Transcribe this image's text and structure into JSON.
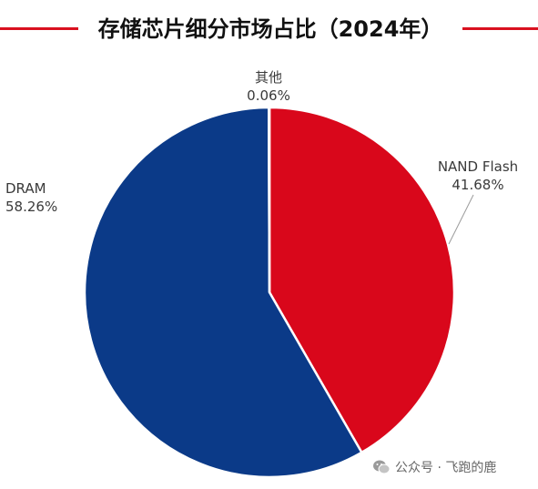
{
  "title": "存储芯片细分市场占比（2024年）",
  "chart_data": {
    "type": "pie",
    "title": "存储芯片细分市场占比（2024年）",
    "slices": [
      {
        "name": "NAND Flash",
        "value": 41.68,
        "label": "41.68%",
        "color": "#d9071b"
      },
      {
        "name": "DRAM",
        "value": 58.26,
        "label": "58.26%",
        "color": "#0b3a88"
      },
      {
        "name": "其他",
        "value": 0.06,
        "label": "0.06%",
        "color": "#9a9a9a"
      }
    ]
  },
  "colors": {
    "accent_line": "#d9101f",
    "label_text": "#3a3a3a"
  },
  "watermark": {
    "text": "公众号 · 飞跑的鹿",
    "icon": "wechat-icon"
  }
}
